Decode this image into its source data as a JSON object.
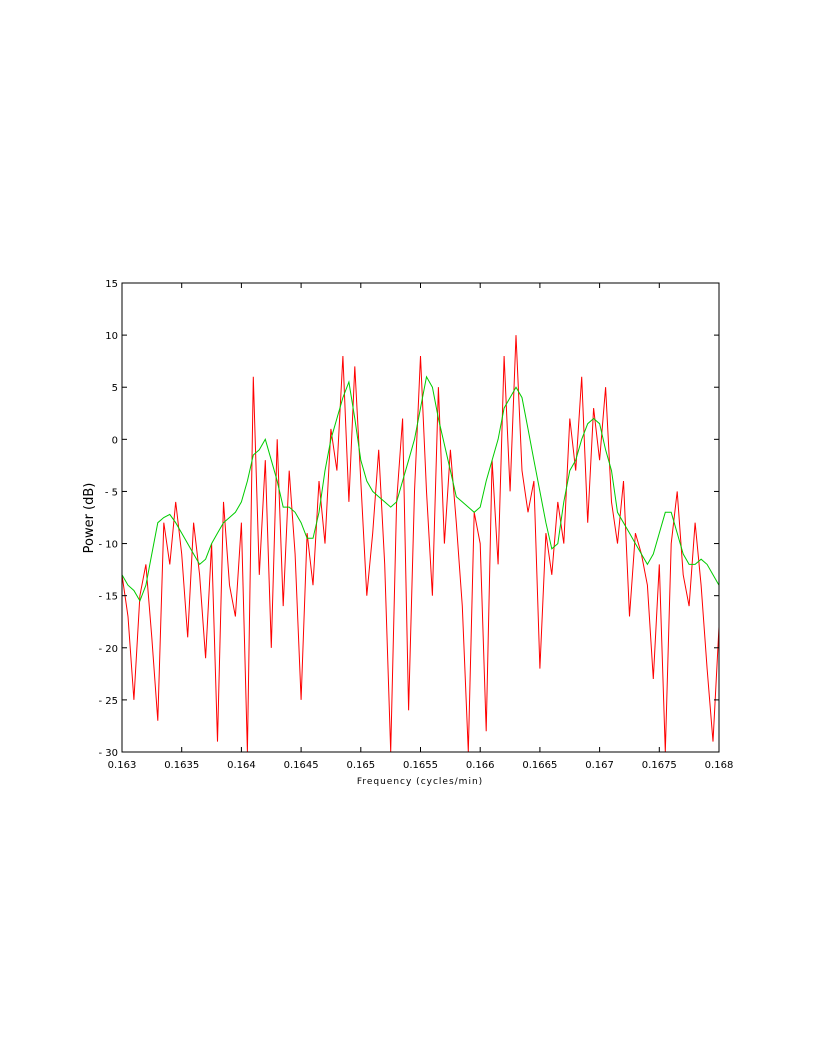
{
  "chart_data": {
    "type": "line",
    "xlabel": "Frequency (cycles/min)",
    "ylabel": "Power (dB)",
    "xlim": [
      0.163,
      0.168
    ],
    "ylim": [
      -30,
      15
    ],
    "grid": false,
    "x_ticks": [
      0.163,
      0.1635,
      0.164,
      0.1645,
      0.165,
      0.1655,
      0.166,
      0.1665,
      0.167,
      0.1675,
      0.168
    ],
    "x_tick_labels": [
      "0.163",
      "0.1635",
      "0.164",
      "0.1645",
      "0.165",
      "0.1655",
      "0.166",
      "0.1665",
      "0.167",
      "0.1675",
      "0.168"
    ],
    "y_ticks": [
      15,
      10,
      5,
      0,
      -5,
      -10,
      -15,
      -20,
      -25,
      -30
    ],
    "y_tick_labels": [
      "15",
      "10",
      "5",
      "0",
      "- 5",
      "- 10",
      "- 15",
      "- 20",
      "- 25",
      "- 30"
    ],
    "series": [
      {
        "color": "#ff0000",
        "x": [
          0.163,
          0.16305,
          0.1631,
          0.16315,
          0.1632,
          0.16325,
          0.1633,
          0.16335,
          0.1634,
          0.16345,
          0.1635,
          0.16355,
          0.1636,
          0.16365,
          0.1637,
          0.16375,
          0.1638,
          0.16385,
          0.1639,
          0.16395,
          0.164,
          0.16405,
          0.1641,
          0.16415,
          0.1642,
          0.16425,
          0.1643,
          0.16435,
          0.1644,
          0.16445,
          0.1645,
          0.16455,
          0.1646,
          0.16465,
          0.1647,
          0.16475,
          0.1648,
          0.16485,
          0.1649,
          0.16495,
          0.165,
          0.16505,
          0.1651,
          0.16515,
          0.1652,
          0.16525,
          0.1653,
          0.16535,
          0.1654,
          0.16545,
          0.1655,
          0.16555,
          0.1656,
          0.16565,
          0.1657,
          0.16575,
          0.1658,
          0.16585,
          0.1659,
          0.16595,
          0.166,
          0.16605,
          0.1661,
          0.16615,
          0.1662,
          0.16625,
          0.1663,
          0.16635,
          0.1664,
          0.16645,
          0.1665,
          0.16655,
          0.1666,
          0.16665,
          0.1667,
          0.16675,
          0.1668,
          0.16685,
          0.1669,
          0.16695,
          0.167,
          0.16705,
          0.1671,
          0.16715,
          0.1672,
          0.16725,
          0.1673,
          0.16735,
          0.1674,
          0.16745,
          0.1675,
          0.16755,
          0.1676,
          0.16765,
          0.1677,
          0.16775,
          0.1678,
          0.16785,
          0.1679,
          0.16795,
          0.168
        ],
        "y": [
          -13,
          -17,
          -25,
          -15,
          -12,
          -19,
          -27,
          -8,
          -12,
          -6,
          -11,
          -19,
          -8,
          -13,
          -21,
          -10,
          -29,
          -6,
          -14,
          -17,
          -8,
          -30,
          6,
          -13,
          -2,
          -20,
          0,
          -16,
          -3,
          -11,
          -25,
          -9,
          -14,
          -4,
          -10,
          1,
          -3,
          8,
          -6,
          7,
          -4,
          -15,
          -9,
          -1,
          -12,
          -30,
          -6,
          2,
          -26,
          -5,
          8,
          -5,
          -15,
          5,
          -10,
          -1,
          -8,
          -16,
          -30,
          -7,
          -10,
          -28,
          -2,
          -12,
          8,
          -5,
          10,
          -3,
          -7,
          -4,
          -22,
          -9,
          -13,
          -6,
          -10,
          2,
          -3,
          6,
          -8,
          3,
          -2,
          5,
          -6,
          -10,
          -4,
          -17,
          -9,
          -11,
          -14,
          -23,
          -12,
          -30,
          -10,
          -5,
          -13,
          -16,
          -8,
          -14,
          -22,
          -29,
          -18
        ]
      },
      {
        "color": "#00cc00",
        "x": [
          0.163,
          0.16305,
          0.1631,
          0.16315,
          0.1632,
          0.16325,
          0.1633,
          0.16335,
          0.1634,
          0.16345,
          0.1635,
          0.16355,
          0.1636,
          0.16365,
          0.1637,
          0.16375,
          0.1638,
          0.16385,
          0.1639,
          0.16395,
          0.164,
          0.16405,
          0.1641,
          0.16415,
          0.1642,
          0.16425,
          0.1643,
          0.16435,
          0.1644,
          0.16445,
          0.1645,
          0.16455,
          0.1646,
          0.16465,
          0.1647,
          0.16475,
          0.1648,
          0.16485,
          0.1649,
          0.16495,
          0.165,
          0.16505,
          0.1651,
          0.16515,
          0.1652,
          0.16525,
          0.1653,
          0.16535,
          0.1654,
          0.16545,
          0.1655,
          0.16555,
          0.1656,
          0.16565,
          0.1657,
          0.16575,
          0.1658,
          0.16585,
          0.1659,
          0.16595,
          0.166,
          0.16605,
          0.1661,
          0.16615,
          0.1662,
          0.16625,
          0.1663,
          0.16635,
          0.1664,
          0.16645,
          0.1665,
          0.16655,
          0.1666,
          0.16665,
          0.1667,
          0.16675,
          0.1668,
          0.16685,
          0.1669,
          0.16695,
          0.167,
          0.16705,
          0.1671,
          0.16715,
          0.1672,
          0.16725,
          0.1673,
          0.16735,
          0.1674,
          0.16745,
          0.1675,
          0.16755,
          0.1676,
          0.16765,
          0.1677,
          0.16775,
          0.1678,
          0.16785,
          0.1679,
          0.16795,
          0.168
        ],
        "y": [
          -13,
          -14,
          -14.5,
          -15.5,
          -14,
          -11,
          -8,
          -7.5,
          -7.2,
          -8,
          -9,
          -10,
          -11,
          -12,
          -11.5,
          -10,
          -9,
          -8,
          -7.5,
          -7,
          -6,
          -4,
          -1.5,
          -1,
          0,
          -2,
          -4,
          -6.5,
          -6.5,
          -7,
          -8,
          -9.5,
          -9.5,
          -7,
          -3,
          0,
          2,
          4,
          5.5,
          2,
          -2,
          -4,
          -5,
          -5.5,
          -6,
          -6.5,
          -6,
          -4,
          -2,
          0,
          3,
          6,
          5,
          2,
          -0.5,
          -3,
          -5.5,
          -6,
          -6.5,
          -7,
          -6.5,
          -4,
          -2,
          0,
          3,
          4,
          5,
          4,
          1,
          -2,
          -5,
          -8,
          -10.5,
          -10,
          -6,
          -3,
          -2,
          0,
          1.5,
          2,
          1.5,
          -1,
          -3,
          -7,
          -8,
          -9,
          -10,
          -11,
          -12,
          -11,
          -9,
          -7,
          -7,
          -9,
          -11,
          -12,
          -12,
          -11.5,
          -12,
          -13,
          -14
        ]
      }
    ]
  }
}
